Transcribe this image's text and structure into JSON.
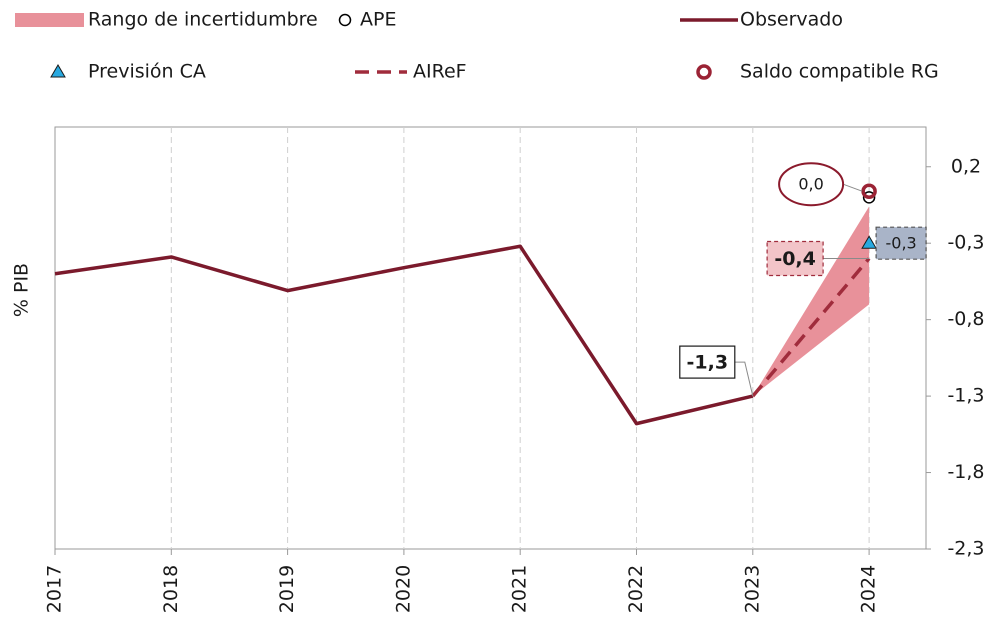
{
  "chart_data": {
    "type": "line",
    "y_label": "% PIB",
    "categories": [
      "2017",
      "2018",
      "2019",
      "2020",
      "2021",
      "2022",
      "2023",
      "2024"
    ],
    "ylim": [
      -2.3,
      0.46
    ],
    "yticks": [
      {
        "value": 0.2,
        "label": "0,2"
      },
      {
        "value": -0.3,
        "label": "-0,3"
      },
      {
        "value": -0.8,
        "label": "-0,8"
      },
      {
        "value": -1.3,
        "label": "-1,3"
      },
      {
        "value": -1.8,
        "label": "-1,8"
      },
      {
        "value": -2.3,
        "label": "-2,3"
      }
    ],
    "grid": true,
    "series": [
      {
        "name": "Rango de incertidumbre",
        "color": "#e8919a",
        "marker": "band",
        "low": [
          null,
          null,
          null,
          null,
          null,
          null,
          -1.3,
          -0.7
        ],
        "high": [
          null,
          null,
          null,
          null,
          null,
          null,
          -1.3,
          -0.06
        ]
      },
      {
        "name": "APE",
        "color": "#000000",
        "marker": "circle",
        "values": [
          null,
          null,
          null,
          null,
          null,
          null,
          null,
          0.0
        ]
      },
      {
        "name": "Observado",
        "color": "#7b1a2c",
        "marker": "line",
        "values": [
          -0.5,
          -0.39,
          -0.61,
          -0.46,
          -0.32,
          -1.48,
          -1.3,
          null
        ],
        "value_labels": [
          null,
          null,
          null,
          null,
          null,
          null,
          "-1,3",
          null
        ]
      },
      {
        "name": "Previsión CA",
        "color": "#29a9e0",
        "marker": "triangle",
        "values": [
          null,
          null,
          null,
          null,
          null,
          null,
          null,
          -0.3
        ],
        "value_labels": [
          null,
          null,
          null,
          null,
          null,
          null,
          null,
          "-0,3"
        ]
      },
      {
        "name": "AIReF",
        "color": "#a02c3c",
        "marker": "dashed",
        "values": [
          null,
          null,
          null,
          null,
          null,
          null,
          -1.3,
          -0.4
        ],
        "value_labels": [
          null,
          null,
          null,
          null,
          null,
          null,
          null,
          "-0,4"
        ]
      },
      {
        "name": "Saldo compatible RG",
        "color": "#9b2335",
        "marker": "ring",
        "values": [
          null,
          null,
          null,
          null,
          null,
          null,
          null,
          0.04
        ],
        "value_labels": [
          null,
          null,
          null,
          null,
          null,
          null,
          null,
          "0,0"
        ]
      }
    ]
  }
}
